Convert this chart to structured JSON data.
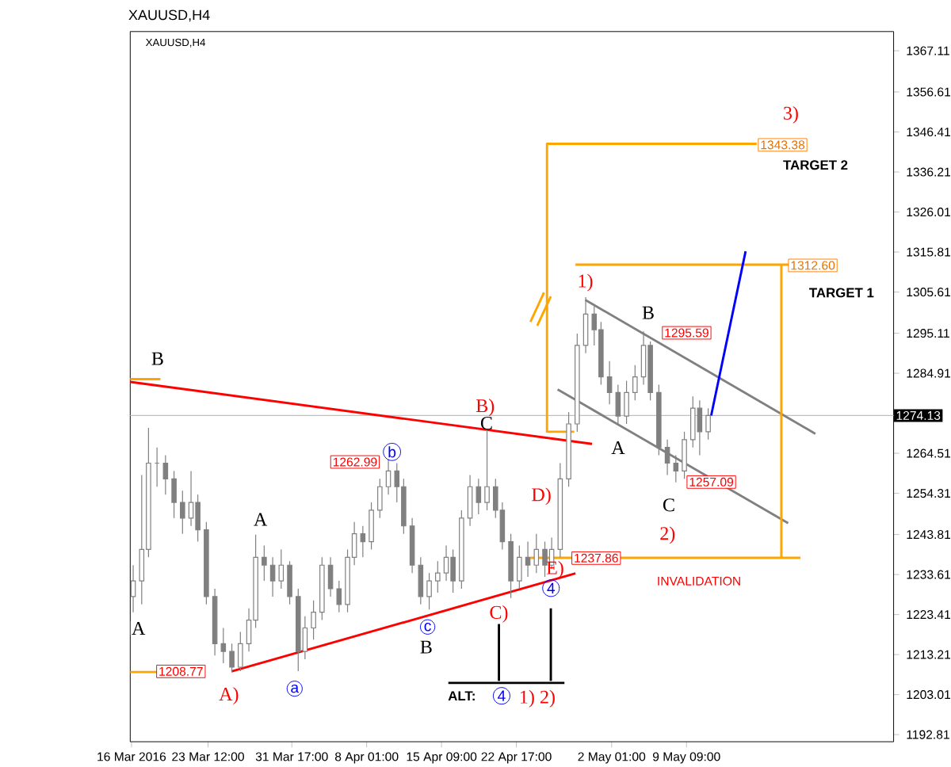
{
  "chart_data": {
    "type": "candlestick",
    "title": "XAUUSD,H4",
    "subtitle": "XAUUSD,H4",
    "xlim": [
      "2016-03-15T21:00",
      "2016-05-29T16:00"
    ],
    "ylim": [
      1191,
      1372
    ],
    "xticks": [
      {
        "value": "2016-03-16",
        "label": "16 Mar 2016"
      },
      {
        "value": "2016-03-23T12:00",
        "label": "23 Mar 12:00"
      },
      {
        "value": "2016-03-31T17:00",
        "label": "31 Mar 17:00"
      },
      {
        "value": "2016-04-08T01:00",
        "label": "8 Apr 01:00"
      },
      {
        "value": "2016-04-15T09:00",
        "label": "15 Apr 09:00"
      },
      {
        "value": "2016-04-22T17:00",
        "label": "22 Apr 17:00"
      },
      {
        "value": "2016-05-02T01:00",
        "label": "2 May 01:00"
      },
      {
        "value": "2016-05-09T09:00",
        "label": "9 May 09:00"
      }
    ],
    "yticks": [
      1192.81,
      1203.01,
      1213.21,
      1223.41,
      1233.61,
      1243.81,
      1254.31,
      1264.51,
      1284.91,
      1295.11,
      1305.61,
      1315.81,
      1326.01,
      1336.21,
      1346.41,
      1356.61,
      1367.11
    ],
    "ref_lines": [
      {
        "axis": "y",
        "value": 1274.13,
        "label": "1274.13",
        "color": "#c0c0c0"
      }
    ],
    "series": [
      {
        "color": "#808080",
        "x": [
          "2016-03-16T04:00",
          "2016-03-17T00:00",
          "2016-03-17T16:00",
          "2016-03-18T12:00",
          "2016-03-19T08:00",
          "2016-03-20T04:00",
          "2016-03-21T00:00",
          "2016-03-21T20:00",
          "2016-03-22T12:00",
          "2016-03-23T08:00",
          "2016-03-24T04:00",
          "2016-03-25T00:00",
          "2016-03-25T20:00",
          "2016-03-26T16:00",
          "2016-03-27T12:00",
          "2016-03-28T04:00",
          "2016-03-29T00:00",
          "2016-03-29T20:00",
          "2016-03-30T16:00",
          "2016-03-31T12:00",
          "2016-04-01T08:00",
          "2016-04-02T00:00",
          "2016-04-02T20:00",
          "2016-04-03T16:00",
          "2016-04-04T12:00",
          "2016-04-05T08:00",
          "2016-04-06T04:00",
          "2016-04-06T20:00",
          "2016-04-07T16:00",
          "2016-04-08T12:00",
          "2016-04-09T08:00",
          "2016-04-10T04:00",
          "2016-04-11T00:00",
          "2016-04-11T16:00",
          "2016-04-12T12:00",
          "2016-04-13T08:00",
          "2016-04-14T04:00",
          "2016-04-15T00:00",
          "2016-04-15T20:00",
          "2016-04-16T12:00",
          "2016-04-17T08:00",
          "2016-04-18T04:00",
          "2016-04-19T00:00",
          "2016-04-19T20:00",
          "2016-04-20T16:00",
          "2016-04-21T08:00",
          "2016-04-22T04:00",
          "2016-04-23T00:00",
          "2016-04-23T20:00",
          "2016-04-24T16:00",
          "2016-04-25T12:00",
          "2016-04-26T04:00",
          "2016-04-27T00:00",
          "2016-04-27T20:00",
          "2016-04-28T16:00",
          "2016-04-29T12:00",
          "2016-04-30T08:00",
          "2016-05-01T00:00",
          "2016-05-01T20:00",
          "2016-05-02T16:00",
          "2016-05-03T12:00",
          "2016-05-04T08:00",
          "2016-05-05T04:00",
          "2016-05-05T20:00",
          "2016-05-06T16:00",
          "2016-05-07T12:00",
          "2016-05-08T08:00",
          "2016-05-09T04:00",
          "2016-05-10T00:00",
          "2016-05-10T16:00",
          "2016-05-11T12:00"
        ],
        "ohlc": [
          [
            1228,
            1236,
            1224,
            1232
          ],
          [
            1232,
            1259,
            1226,
            1240
          ],
          [
            1240,
            1271,
            1238,
            1262
          ],
          [
            1262,
            1266,
            1256,
            1262
          ],
          [
            1262,
            1264,
            1254,
            1258
          ],
          [
            1258,
            1260,
            1248,
            1252
          ],
          [
            1252,
            1255,
            1244,
            1248
          ],
          [
            1248,
            1260,
            1246,
            1252
          ],
          [
            1252,
            1254,
            1242,
            1245
          ],
          [
            1245,
            1247,
            1226,
            1228
          ],
          [
            1228,
            1230,
            1213,
            1216
          ],
          [
            1216,
            1220,
            1211,
            1214
          ],
          [
            1214,
            1216,
            1208.8,
            1210
          ],
          [
            1210,
            1219,
            1209,
            1216
          ],
          [
            1216,
            1225,
            1214,
            1222
          ],
          [
            1222,
            1243.8,
            1220,
            1238
          ],
          [
            1238,
            1241,
            1232,
            1236
          ],
          [
            1236,
            1238,
            1228,
            1232
          ],
          [
            1232,
            1240,
            1230,
            1236
          ],
          [
            1236,
            1237,
            1226,
            1228
          ],
          [
            1228,
            1230,
            1209,
            1214
          ],
          [
            1214,
            1223,
            1212,
            1220
          ],
          [
            1220,
            1227,
            1217,
            1224
          ],
          [
            1224,
            1238,
            1222,
            1236
          ],
          [
            1236,
            1238,
            1228,
            1230
          ],
          [
            1230,
            1232,
            1224,
            1226
          ],
          [
            1226,
            1240,
            1224,
            1238
          ],
          [
            1238,
            1247,
            1236,
            1244
          ],
          [
            1244,
            1246,
            1238,
            1242
          ],
          [
            1242,
            1252,
            1240,
            1250
          ],
          [
            1250,
            1258,
            1248,
            1256
          ],
          [
            1256,
            1263,
            1254,
            1260
          ],
          [
            1260,
            1262,
            1252,
            1256
          ],
          [
            1256,
            1258,
            1244,
            1246
          ],
          [
            1246,
            1248,
            1234,
            1236
          ],
          [
            1236,
            1238,
            1226,
            1228
          ],
          [
            1228,
            1234,
            1224.7,
            1232
          ],
          [
            1232,
            1237,
            1229,
            1234
          ],
          [
            1234,
            1241,
            1232,
            1238
          ],
          [
            1238,
            1240,
            1229,
            1232
          ],
          [
            1232,
            1250,
            1230,
            1248
          ],
          [
            1248,
            1259,
            1246,
            1256
          ],
          [
            1256,
            1258,
            1249,
            1252
          ],
          [
            1252,
            1270.6,
            1250,
            1256
          ],
          [
            1256,
            1258,
            1248,
            1250
          ],
          [
            1250,
            1252,
            1240,
            1242
          ],
          [
            1242,
            1244,
            1227.6,
            1232
          ],
          [
            1232,
            1241,
            1230,
            1238
          ],
          [
            1238,
            1242,
            1233,
            1236
          ],
          [
            1236,
            1244,
            1234,
            1240
          ],
          [
            1240,
            1242,
            1233,
            1236
          ],
          [
            1236,
            1243,
            1235,
            1240
          ],
          [
            1240,
            1262,
            1238,
            1258
          ],
          [
            1258,
            1275,
            1256,
            1272
          ],
          [
            1272,
            1295,
            1270,
            1292
          ],
          [
            1292,
            1304.3,
            1290,
            1300
          ],
          [
            1300,
            1302,
            1292,
            1296
          ],
          [
            1296,
            1298,
            1282,
            1284
          ],
          [
            1284,
            1288,
            1277,
            1280
          ],
          [
            1280,
            1282,
            1271.7,
            1274
          ],
          [
            1274,
            1283,
            1272,
            1280
          ],
          [
            1280,
            1287,
            1278,
            1284
          ],
          [
            1284,
            1295.6,
            1282,
            1292
          ],
          [
            1292,
            1293,
            1278,
            1280
          ],
          [
            1280,
            1282,
            1264,
            1266
          ],
          [
            1266,
            1268,
            1259,
            1262
          ],
          [
            1262,
            1264,
            1257.1,
            1260
          ],
          [
            1260,
            1270,
            1258,
            1268
          ],
          [
            1268,
            1279,
            1266,
            1276
          ],
          [
            1276,
            1278,
            1264,
            1270
          ],
          [
            1270,
            1276,
            1268,
            1274.13
          ]
        ]
      },
      {
        "type": "line",
        "color": "#ff0000",
        "x": [
          "2016-03-15T21:00",
          "2016-04-30T03:00"
        ],
        "values": [
          1282.7,
          1266.9
        ]
      },
      {
        "type": "line",
        "color": "#ff0000",
        "x": [
          "2016-03-25T19:00",
          "2016-04-28T12:00"
        ],
        "values": [
          1208.9,
          1233.9
        ]
      },
      {
        "type": "line",
        "color": "#808080",
        "x": [
          "2016-04-29T11:00",
          "2016-05-22T00:00"
        ],
        "values": [
          1303.6,
          1269.5
        ]
      },
      {
        "type": "line",
        "color": "#808080",
        "x": [
          "2016-04-26T18:00",
          "2016-05-19T08:00"
        ],
        "values": [
          1280.8,
          1246.7
        ]
      },
      {
        "type": "line",
        "color": "#ffa500",
        "x": [
          "2016-05-16T06:00",
          "2016-04-25T17:00",
          "2016-04-25T17:00",
          "2016-04-28T09:00"
        ],
        "values": [
          1343.38,
          1343.38,
          1270,
          1270
        ]
      },
      {
        "type": "line",
        "color": "#ffa500",
        "x": [
          "2016-04-28T12:00",
          "2016-05-19T14:00"
        ],
        "values": [
          1312.6,
          1312.6
        ]
      },
      {
        "type": "line",
        "color": "#ffa500",
        "x": [
          "2016-05-18T16:00",
          "2016-05-18T16:00"
        ],
        "values": [
          1312.6,
          1237.86
        ]
      },
      {
        "type": "line",
        "color": "#ffa500",
        "x": [
          "2016-04-24T02:00",
          "2016-05-20T13:00"
        ],
        "values": [
          1237.86,
          1237.86
        ]
      },
      {
        "type": "line",
        "color": "#ffa500",
        "x": [
          "2016-03-15T21:00",
          "2016-03-18T20:00"
        ],
        "values": [
          1208.77,
          1208.77
        ]
      },
      {
        "type": "line",
        "color": "#ffa500",
        "x": [
          "2016-03-15T21:00",
          "2016-03-18T20:00"
        ],
        "values": [
          1283.4,
          1283.4
        ]
      },
      {
        "type": "line",
        "color": "#ffa500",
        "x": [
          "2016-04-24T02:00",
          "2016-04-25T10:00"
        ],
        "values": [
          1298,
          1305.5
        ]
      },
      {
        "type": "line",
        "color": "#ffa500",
        "x": [
          "2016-04-24T18:00",
          "2016-04-26T02:00"
        ],
        "values": [
          1297,
          1304.5
        ]
      },
      {
        "type": "line",
        "color": "#000000",
        "x": [
          "2016-04-16T01:00",
          "2016-04-27T10:00"
        ],
        "values": [
          1206,
          1206
        ]
      },
      {
        "type": "line",
        "color": "#000000",
        "x": [
          "2016-04-21T00:00",
          "2016-04-21T00:00"
        ],
        "values": [
          1206.5,
          1221
        ]
      },
      {
        "type": "line",
        "color": "#000000",
        "x": [
          "2016-04-26T02:00",
          "2016-04-26T02:00"
        ],
        "values": [
          1206.5,
          1225
        ]
      },
      {
        "type": "line",
        "color": "#0000ff",
        "x": [
          "2016-05-11T19:00",
          "2016-05-15T04:00"
        ],
        "values": [
          1274.13,
          1316
        ]
      }
    ],
    "annotations": [
      "B",
      "A",
      "A)",
      "A",
      "a",
      "1208.77",
      "1262.99",
      "b",
      "c",
      "B",
      "B)",
      "C",
      "C)",
      "D)",
      "E)",
      "4",
      "1237.86",
      "1)",
      "A",
      "B",
      "1295.59",
      "C",
      "1257.09",
      "2)",
      "3)",
      "1343.38",
      "TARGET 2",
      "1312.60",
      "TARGET 1",
      "INVALIDATION",
      "ALT:",
      "4",
      "1) 2)"
    ]
  }
}
